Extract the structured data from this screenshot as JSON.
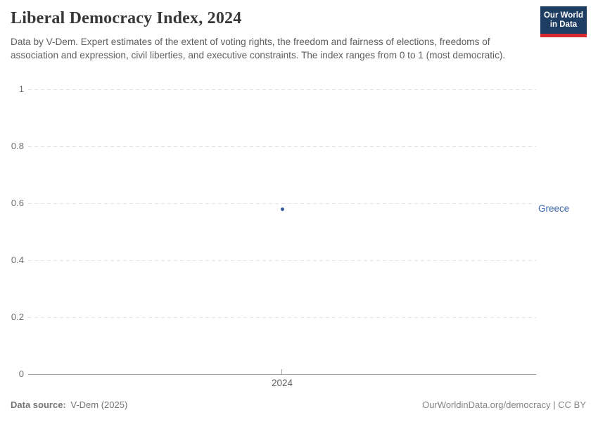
{
  "header": {
    "title": "Liberal Democracy Index, 2024",
    "subtitle": "Data by V-Dem. Expert estimates of the extent of voting rights, the freedom and fairness of elections, freedoms of association and expression, civil liberties, and executive constraints. The index ranges from 0 to 1 (most democratic)."
  },
  "logo": {
    "line1": "Our World",
    "line2": "in Data",
    "bg_color": "#1d3d63",
    "stripe_color": "#d7282f"
  },
  "chart_data": {
    "type": "scatter",
    "title": "Liberal Democracy Index, 2024",
    "xlabel": "",
    "ylabel": "",
    "ylim": [
      0,
      1
    ],
    "yticks": [
      0,
      0.2,
      0.4,
      0.6,
      0.8,
      1
    ],
    "ytick_labels": [
      "0",
      "0.2",
      "0.4",
      "0.6",
      "0.8",
      "1"
    ],
    "xticks": [
      2024
    ],
    "xtick_labels": [
      "2024"
    ],
    "grid": "horizontal-dashed",
    "legend": "entity-label-right",
    "series": [
      {
        "name": "Greece",
        "color": "#3b5a9e",
        "label_color": "#3d6bb0",
        "points": [
          {
            "x": 2024,
            "y": 0.58
          }
        ]
      }
    ]
  },
  "footer": {
    "source_label": "Data source:",
    "source_value": "V-Dem (2025)",
    "rights": "OurWorldinData.org/democracy | CC BY"
  }
}
